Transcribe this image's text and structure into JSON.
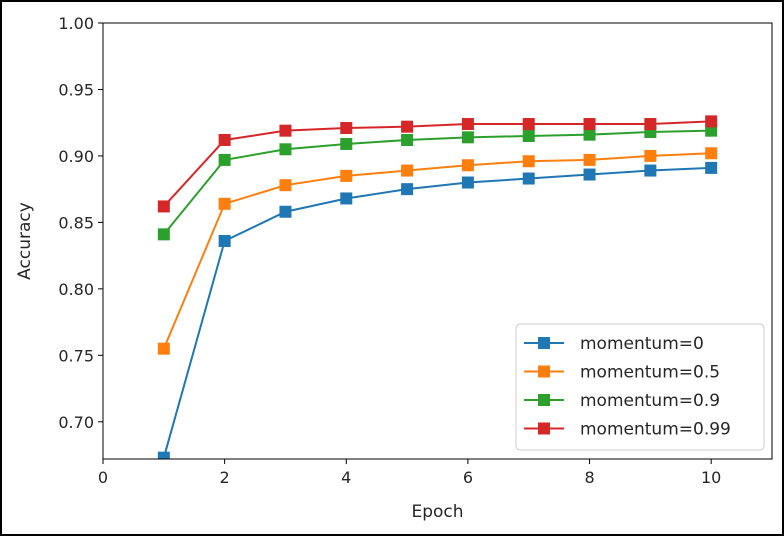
{
  "chart_data": {
    "type": "line",
    "title": "",
    "xlabel": "Epoch",
    "ylabel": "Accuracy",
    "xlim": [
      0,
      11
    ],
    "ylim": [
      0.672,
      1.0
    ],
    "xticks": [
      0,
      2,
      4,
      6,
      8,
      10
    ],
    "yticks": [
      0.7,
      0.75,
      0.8,
      0.85,
      0.9,
      0.95,
      1.0
    ],
    "xtick_labels": [
      "0",
      "2",
      "4",
      "6",
      "8",
      "10"
    ],
    "ytick_labels": [
      "0.70",
      "0.75",
      "0.80",
      "0.85",
      "0.90",
      "0.95",
      "1.00"
    ],
    "grid": false,
    "legend_position": "lower-right",
    "marker": "square",
    "x": [
      1,
      2,
      3,
      4,
      5,
      6,
      7,
      8,
      9,
      10
    ],
    "series": [
      {
        "name": "momentum=0",
        "color": "#1f77b4",
        "values": [
          0.673,
          0.836,
          0.858,
          0.868,
          0.875,
          0.88,
          0.883,
          0.886,
          0.889,
          0.891
        ]
      },
      {
        "name": "momentum=0.5",
        "color": "#ff7f0e",
        "values": [
          0.755,
          0.864,
          0.878,
          0.885,
          0.889,
          0.893,
          0.896,
          0.897,
          0.9,
          0.902
        ]
      },
      {
        "name": "momentum=0.9",
        "color": "#2ca02c",
        "values": [
          0.841,
          0.897,
          0.905,
          0.909,
          0.912,
          0.914,
          0.915,
          0.916,
          0.918,
          0.919
        ]
      },
      {
        "name": "momentum=0.99",
        "color": "#d62728",
        "values": [
          0.862,
          0.912,
          0.919,
          0.921,
          0.922,
          0.924,
          0.924,
          0.924,
          0.924,
          0.926
        ]
      }
    ]
  }
}
